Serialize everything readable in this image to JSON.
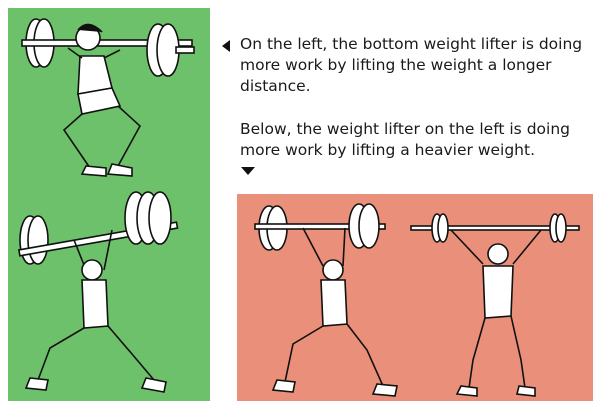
{
  "captions": {
    "line1": "On the left, the bottom weight lifter is doing more work by lifting the weight a longer distance.",
    "line2": "Below, the weight lifter on the left is doing more work by lifting a heavier weight."
  },
  "colors": {
    "green_panel": "#6ec16b",
    "red_panel": "#e98f7a",
    "arrow": "#111111"
  },
  "icons": {
    "left_pointer": "arrow-left-icon",
    "down_pointer": "arrow-down-icon"
  }
}
